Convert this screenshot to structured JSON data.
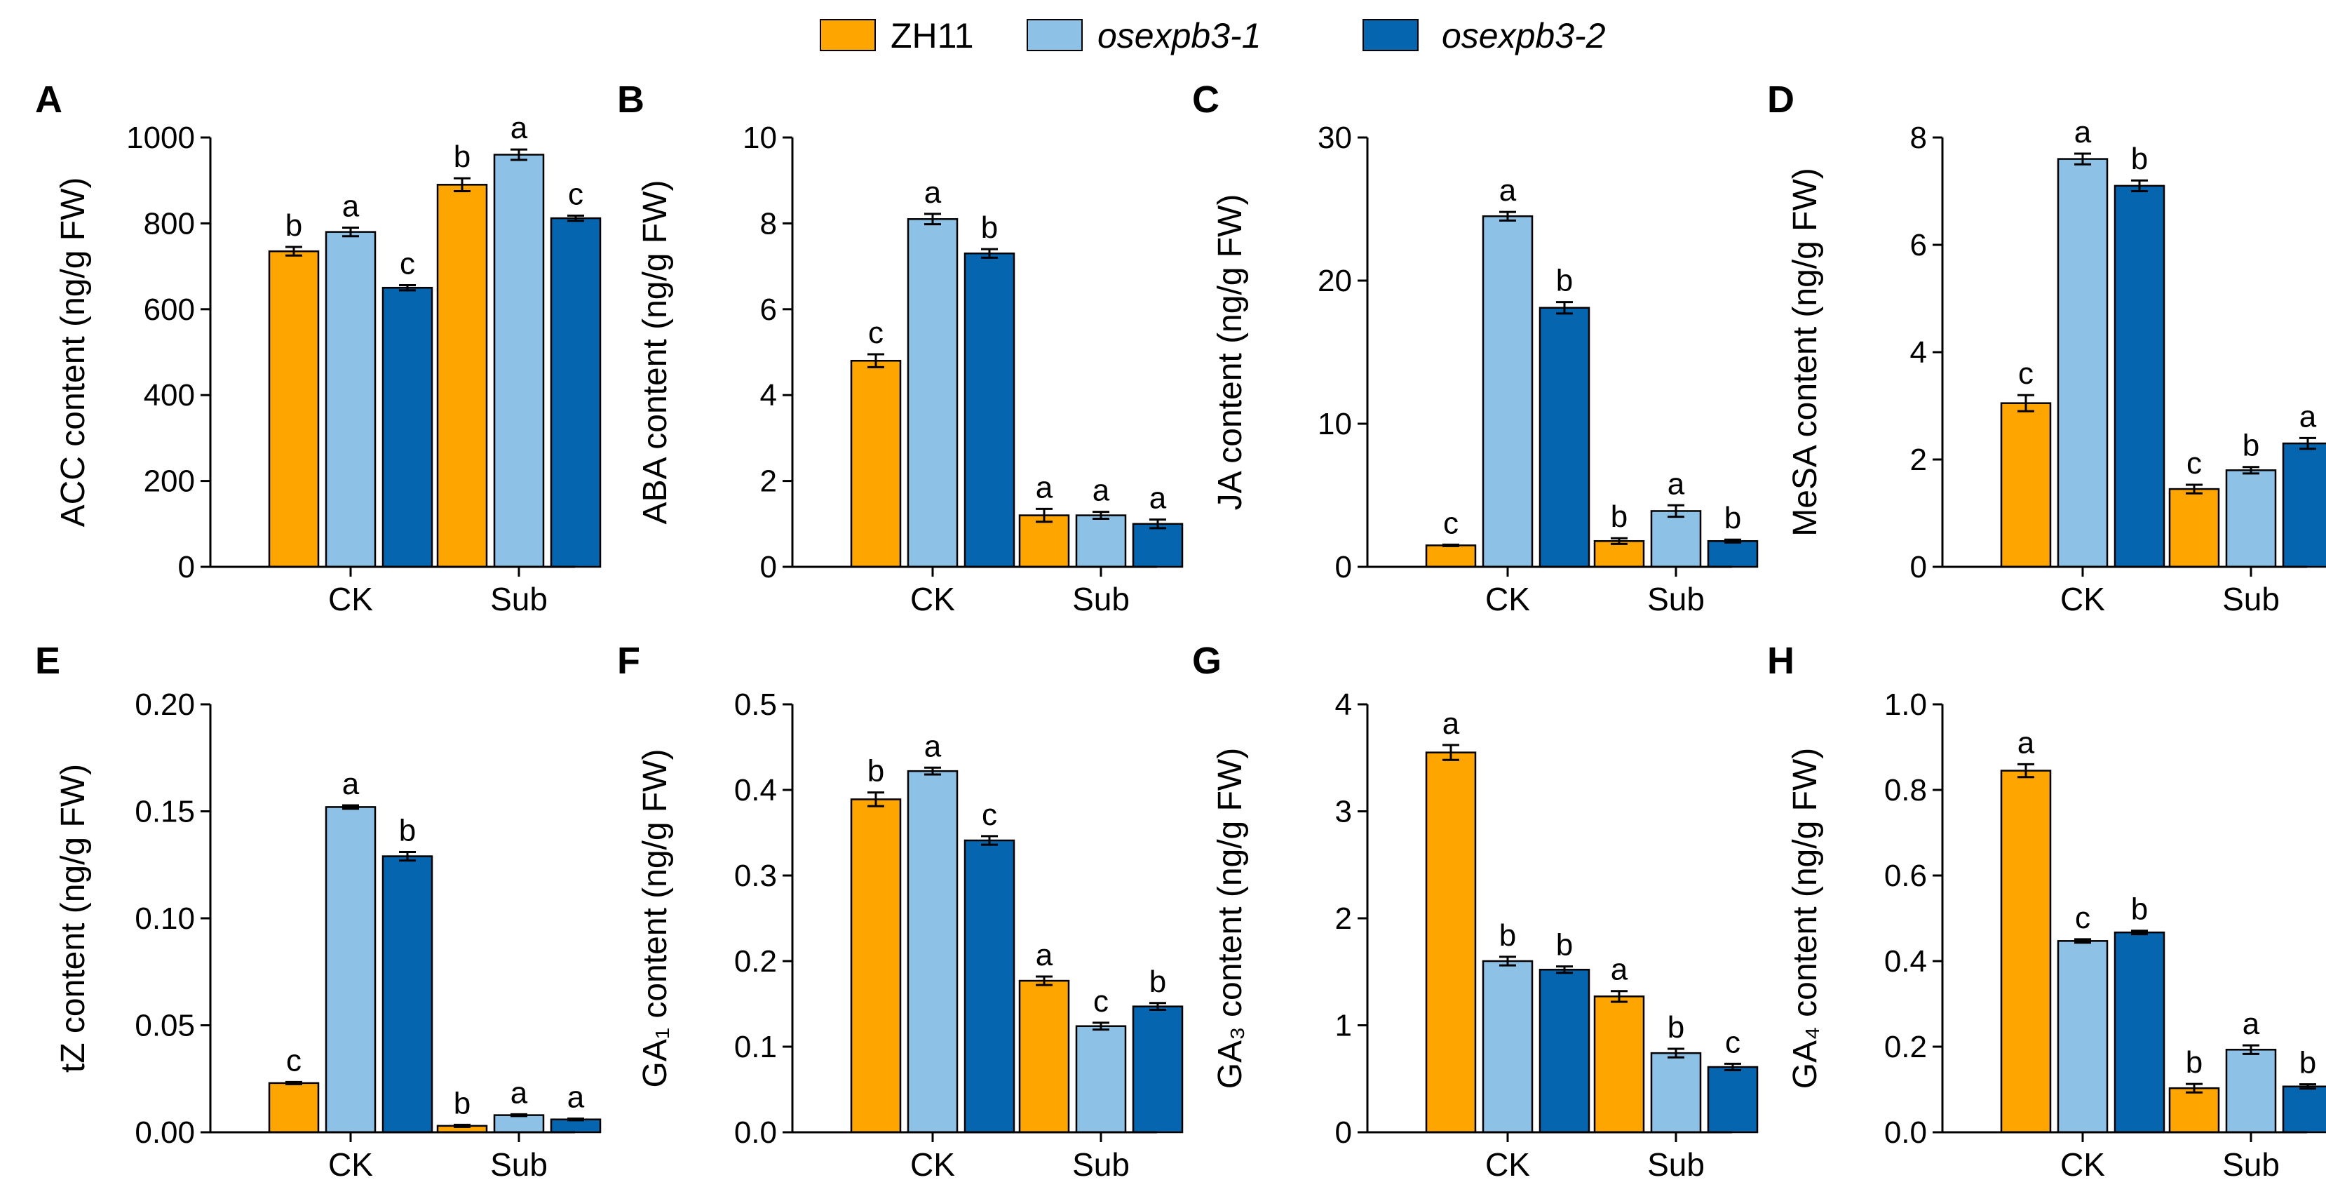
{
  "legend": {
    "items": [
      {
        "label": "ZH11",
        "color": "#FFA500",
        "italic": false
      },
      {
        "label": "osexpb3-1",
        "color": "#8EC1E6",
        "italic": true
      },
      {
        "label": "osexpb3-2",
        "color": "#0565AF",
        "italic": true
      }
    ]
  },
  "chart_data": [
    {
      "type": "bar",
      "panel": "A",
      "ylabel": "ACC content (ng/g FW)",
      "categories": [
        "CK",
        "Sub"
      ],
      "ylim": [
        0,
        1000
      ],
      "yticks": [
        0,
        200,
        400,
        600,
        800,
        1000
      ],
      "series": [
        {
          "name": "ZH11",
          "values": [
            735,
            890
          ],
          "errors": [
            10,
            15
          ],
          "letters": [
            "b",
            "b"
          ]
        },
        {
          "name": "osexpb3-1",
          "values": [
            780,
            960
          ],
          "errors": [
            10,
            12
          ],
          "letters": [
            "a",
            "a"
          ]
        },
        {
          "name": "osexpb3-2",
          "values": [
            650,
            812
          ],
          "errors": [
            6,
            6
          ],
          "letters": [
            "c",
            "c"
          ]
        }
      ]
    },
    {
      "type": "bar",
      "panel": "B",
      "ylabel": "ABA content (ng/g FW)",
      "categories": [
        "CK",
        "Sub"
      ],
      "ylim": [
        0,
        10
      ],
      "yticks": [
        0,
        2,
        4,
        6,
        8,
        10
      ],
      "series": [
        {
          "name": "ZH11",
          "values": [
            4.8,
            1.2
          ],
          "errors": [
            0.15,
            0.15
          ],
          "letters": [
            "c",
            "a"
          ]
        },
        {
          "name": "osexpb3-1",
          "values": [
            8.1,
            1.2
          ],
          "errors": [
            0.12,
            0.08
          ],
          "letters": [
            "a",
            "a"
          ]
        },
        {
          "name": "osexpb3-2",
          "values": [
            7.3,
            1.0
          ],
          "errors": [
            0.1,
            0.1
          ],
          "letters": [
            "b",
            "a"
          ]
        }
      ]
    },
    {
      "type": "bar",
      "panel": "C",
      "ylabel": "JA content (ng/g FW)",
      "categories": [
        "CK",
        "Sub"
      ],
      "ylim": [
        0,
        30
      ],
      "yticks": [
        0,
        10,
        20,
        30
      ],
      "series": [
        {
          "name": "ZH11",
          "values": [
            1.5,
            1.8
          ],
          "errors": [
            0.05,
            0.2
          ],
          "letters": [
            "c",
            "b"
          ]
        },
        {
          "name": "osexpb3-1",
          "values": [
            24.5,
            3.9
          ],
          "errors": [
            0.3,
            0.4
          ],
          "letters": [
            "a",
            "a"
          ]
        },
        {
          "name": "osexpb3-2",
          "values": [
            18.1,
            1.8
          ],
          "errors": [
            0.4,
            0.1
          ],
          "letters": [
            "b",
            "b"
          ]
        }
      ]
    },
    {
      "type": "bar",
      "panel": "D",
      "ylabel": "MeSA content (ng/g FW)",
      "categories": [
        "CK",
        "Sub"
      ],
      "ylim": [
        0,
        8
      ],
      "yticks": [
        0,
        2,
        4,
        6,
        8
      ],
      "series": [
        {
          "name": "ZH11",
          "values": [
            3.05,
            1.45
          ],
          "errors": [
            0.15,
            0.08
          ],
          "letters": [
            "c",
            "c"
          ]
        },
        {
          "name": "osexpb3-1",
          "values": [
            7.6,
            1.8
          ],
          "errors": [
            0.1,
            0.06
          ],
          "letters": [
            "a",
            "b"
          ]
        },
        {
          "name": "osexpb3-2",
          "values": [
            7.1,
            2.3
          ],
          "errors": [
            0.1,
            0.1
          ],
          "letters": [
            "b",
            "a"
          ]
        }
      ]
    },
    {
      "type": "bar",
      "panel": "E",
      "ylabel": "tZ content (ng/g FW)",
      "categories": [
        "CK",
        "Sub"
      ],
      "ylim": [
        0,
        0.2
      ],
      "yticks": [
        "0.00",
        "0.05",
        "0.10",
        "0.15",
        "0.20"
      ],
      "series": [
        {
          "name": "ZH11",
          "values": [
            0.023,
            0.003
          ],
          "errors": [
            0.0005,
            0.0005
          ],
          "letters": [
            "c",
            "b"
          ]
        },
        {
          "name": "osexpb3-1",
          "values": [
            0.152,
            0.008
          ],
          "errors": [
            0.0008,
            0.0004
          ],
          "letters": [
            "a",
            "a"
          ]
        },
        {
          "name": "osexpb3-2",
          "values": [
            0.129,
            0.006
          ],
          "errors": [
            0.002,
            0.0004
          ],
          "letters": [
            "b",
            "a"
          ]
        }
      ]
    },
    {
      "type": "bar",
      "panel": "F",
      "ylabel": "GA₁ content (ng/g FW)",
      "categories": [
        "CK",
        "Sub"
      ],
      "ylim": [
        0,
        0.5
      ],
      "yticks": [
        "0.0",
        "0.1",
        "0.2",
        "0.3",
        "0.4",
        "0.5"
      ],
      "series": [
        {
          "name": "ZH11",
          "values": [
            0.389,
            0.177
          ],
          "errors": [
            0.008,
            0.005
          ],
          "letters": [
            "b",
            "a"
          ]
        },
        {
          "name": "osexpb3-1",
          "values": [
            0.422,
            0.124
          ],
          "errors": [
            0.004,
            0.004
          ],
          "letters": [
            "a",
            "c"
          ]
        },
        {
          "name": "osexpb3-2",
          "values": [
            0.341,
            0.147
          ],
          "errors": [
            0.005,
            0.004
          ],
          "letters": [
            "c",
            "b"
          ]
        }
      ]
    },
    {
      "type": "bar",
      "panel": "G",
      "ylabel": "GA₃ content (ng/g FW)",
      "categories": [
        "CK",
        "Sub"
      ],
      "ylim": [
        0,
        4
      ],
      "yticks": [
        0,
        1,
        2,
        3,
        4
      ],
      "series": [
        {
          "name": "ZH11",
          "values": [
            3.55,
            1.27
          ],
          "errors": [
            0.07,
            0.05
          ],
          "letters": [
            "a",
            "a"
          ]
        },
        {
          "name": "osexpb3-1",
          "values": [
            1.6,
            0.74
          ],
          "errors": [
            0.04,
            0.04
          ],
          "letters": [
            "b",
            "b"
          ]
        },
        {
          "name": "osexpb3-2",
          "values": [
            1.52,
            0.61
          ],
          "errors": [
            0.03,
            0.03
          ],
          "letters": [
            "b",
            "c"
          ]
        }
      ]
    },
    {
      "type": "bar",
      "panel": "H",
      "ylabel": "GA₄ content (ng/g FW)",
      "categories": [
        "CK",
        "Sub"
      ],
      "ylim": [
        0,
        1.0
      ],
      "yticks": [
        "0.0",
        "0.2",
        "0.4",
        "0.6",
        "0.8",
        "1.0"
      ],
      "series": [
        {
          "name": "ZH11",
          "values": [
            0.845,
            0.103
          ],
          "errors": [
            0.015,
            0.01
          ],
          "letters": [
            "a",
            "b"
          ]
        },
        {
          "name": "osexpb3-1",
          "values": [
            0.447,
            0.193
          ],
          "errors": [
            0.004,
            0.01
          ],
          "letters": [
            "c",
            "a"
          ]
        },
        {
          "name": "osexpb3-2",
          "values": [
            0.467,
            0.107
          ],
          "errors": [
            0.004,
            0.005
          ],
          "letters": [
            "b",
            "b"
          ]
        }
      ]
    }
  ]
}
